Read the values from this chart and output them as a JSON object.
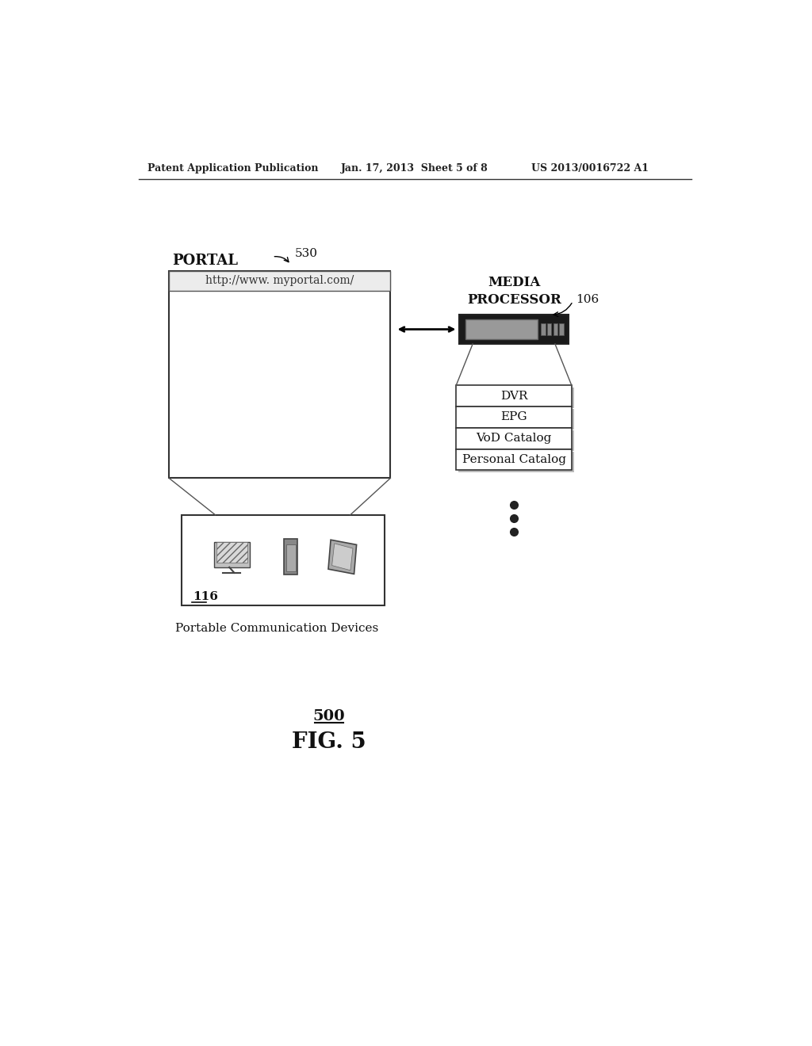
{
  "bg_color": "#ffffff",
  "header_left": "Patent Application Publication",
  "header_mid": "Jan. 17, 2013  Sheet 5 of 8",
  "header_right": "US 2013/0016722 A1",
  "portal_label": "PORTAL",
  "portal_ref": "530",
  "url_text": "http://www. myportal.com/",
  "devices_box_label": "116",
  "devices_caption": "Portable Communication Devices",
  "media_processor_label": "MEDIA\nPROCESSOR",
  "media_processor_ref": "106",
  "stack_items": [
    "DVR",
    "EPG",
    "VoD Catalog",
    "Personal Catalog"
  ],
  "fig_ref": "500",
  "fig_label": "FIG. 5"
}
